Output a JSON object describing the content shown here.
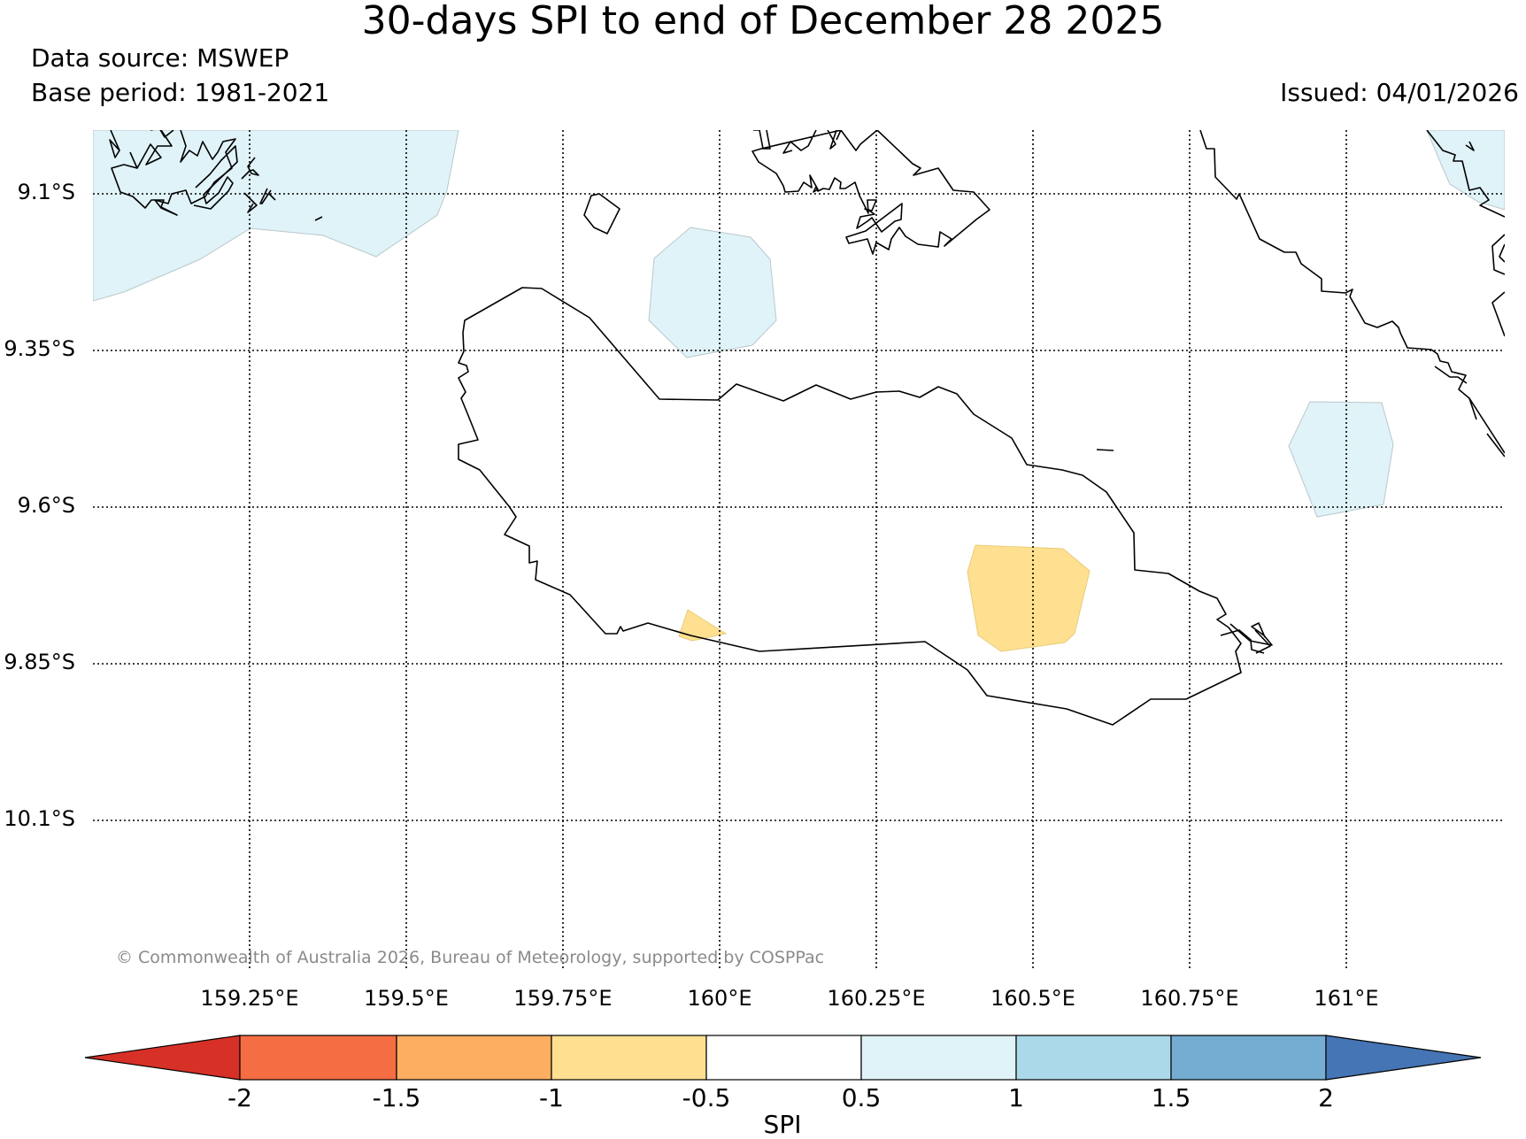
{
  "title": "30-days SPI to end of December 28 2025",
  "data_source": "Data source: MSWEP",
  "base_period": "Base period: 1981-2021",
  "issued": "Issued: 04/01/2026",
  "copyright": "© Commonwealth of Australia 2026, Bureau of Meteorology, supported by COSPPac",
  "latitude_labels": [
    "9.1°S",
    "9.35°S",
    "9.6°S",
    "9.85°S",
    "10.1°S"
  ],
  "longitude_labels": [
    "159.25°E",
    "159.5°E",
    "159.75°E",
    "160°E",
    "160.25°E",
    "160.5°E",
    "160.75°E",
    "161°E"
  ],
  "colorbar": {
    "label": "SPI",
    "ticks": [
      "-2",
      "-1.5",
      "-1",
      "-0.5",
      "0.5",
      "1",
      "1.5",
      "2"
    ],
    "colors": [
      "#d73027",
      "#f46d43",
      "#fdae61",
      "#fee090",
      "#ffffff",
      "#e0f3f8",
      "#abd9e9",
      "#74add1",
      "#4575b4"
    ]
  },
  "colors": {
    "wet_light": "#e0f3f8",
    "dry_light": "#fee090",
    "coastline": "#000000"
  }
}
